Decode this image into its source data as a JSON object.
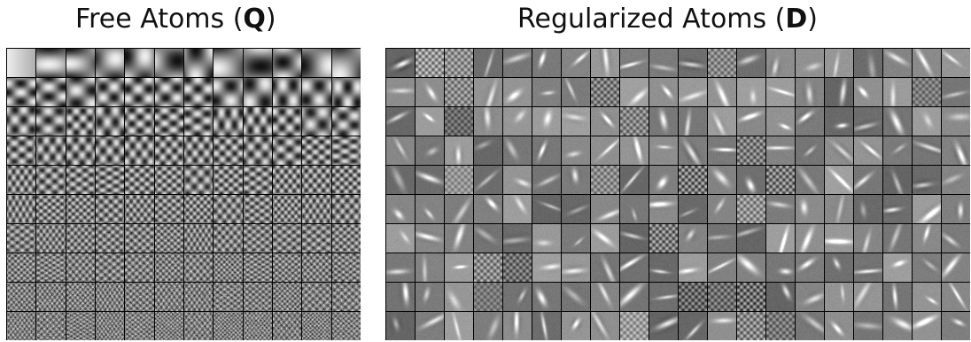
{
  "panels": [
    {
      "title_prefix": "Free Atoms (",
      "title_symbol": "Q",
      "title_suffix": ")"
    },
    {
      "title_prefix": "Regularized Atoms (",
      "title_symbol": "D",
      "title_suffix": ")"
    }
  ],
  "colors": {
    "background": "#ffffff",
    "grid_line": "#000000",
    "patch_mid_gray": "#808080"
  }
}
